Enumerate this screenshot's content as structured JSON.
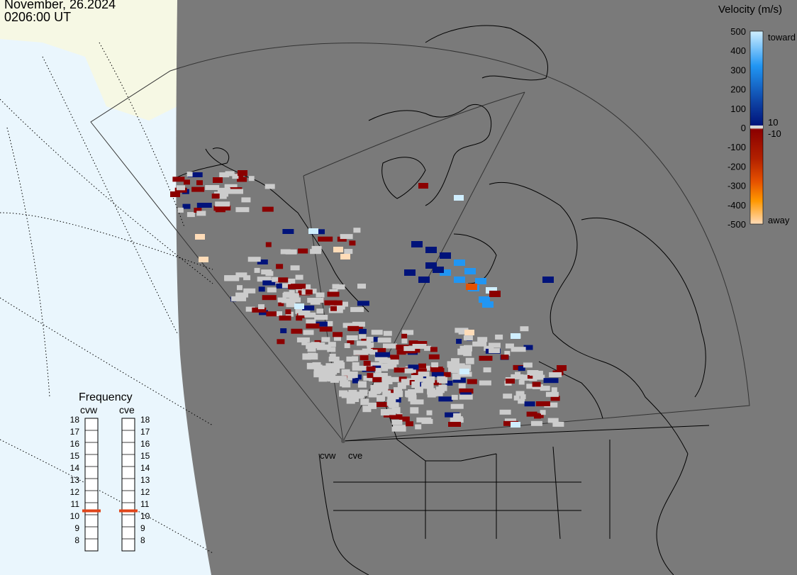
{
  "header": {
    "date": "November, 26.2024",
    "time": "0206:00 UT"
  },
  "colorbar": {
    "title": "Velocity (m/s)",
    "ticks": [
      "500",
      "400",
      "300",
      "200",
      "100",
      "0",
      "-100",
      "-200",
      "-300",
      "-400",
      "-500"
    ],
    "values": [
      500,
      400,
      300,
      200,
      100,
      0,
      -100,
      -200,
      -300,
      -400,
      -500
    ],
    "toward_label": "toward",
    "away_label": "away",
    "threshold_pos": "10",
    "threshold_neg": "-10",
    "colors": {
      "toward_light": "#cfeeff",
      "toward_mid": "#2196f3",
      "toward_dark": "#0d3ea0",
      "near_zero_pos": "#00137a",
      "ground_scatter": "#cccccc",
      "near_zero_neg": "#8b0000",
      "away_mid": "#e65100",
      "away_orange": "#ff9800",
      "away_light": "#ffdcb8"
    }
  },
  "frequency": {
    "title": "Frequency",
    "radars": [
      {
        "name": "cvw",
        "value_mhz": 11
      },
      {
        "name": "cve",
        "value_mhz": 11
      }
    ],
    "scale": [
      "18",
      "17",
      "16",
      "15",
      "14",
      "13",
      "12",
      "11",
      "10",
      "9",
      "8"
    ],
    "marker_color": "#e0451a"
  },
  "map": {
    "radar_sites": [
      "cvw",
      "cve"
    ],
    "colors": {
      "night": "#7a7a7a",
      "day": "#eaf6fd",
      "snow": "#f6f8e4",
      "coast": "#000000"
    }
  }
}
